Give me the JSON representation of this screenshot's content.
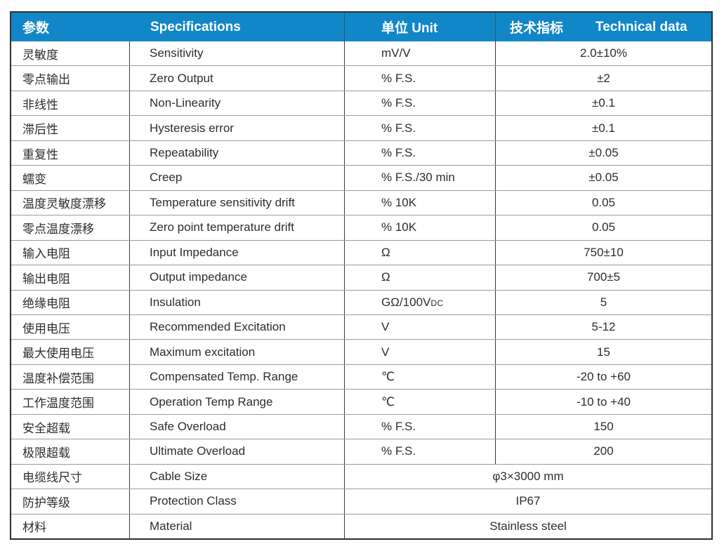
{
  "colors": {
    "header_bg": "#1287c8",
    "header_text": "#ffffff",
    "outer_border": "#2e2e2e",
    "column_divider": "#3a3a3a",
    "row_line": "#9b9b9b",
    "body_text": "#2d2d2d"
  },
  "table": {
    "header": {
      "param_cn": "参数",
      "spec_en": "Specifications",
      "unit": "单位 Unit",
      "tech_cn": "技术指标",
      "tech_en": "Technical data"
    },
    "rows": [
      {
        "cn": "灵敏度",
        "en": "Sensitivity",
        "unit": "mV/V",
        "value": "2.0±10%"
      },
      {
        "cn": "零点输出",
        "en": "Zero Output",
        "unit": "% F.S.",
        "value": "±2"
      },
      {
        "cn": "非线性",
        "en": "Non-Linearity",
        "unit": "% F.S.",
        "value": "±0.1"
      },
      {
        "cn": "滞后性",
        "en": "Hysteresis error",
        "unit": "% F.S.",
        "value": "±0.1"
      },
      {
        "cn": "重复性",
        "en": "Repeatability",
        "unit": "% F.S.",
        "value": "±0.05"
      },
      {
        "cn": "蠕变",
        "en": "Creep",
        "unit": "% F.S./30 min",
        "value": "±0.05"
      },
      {
        "cn": "温度灵敏度漂移",
        "en": "Temperature sensitivity drift",
        "unit": "% 10K",
        "value": "0.05"
      },
      {
        "cn": "零点温度漂移",
        "en": "Zero point temperature drift",
        "unit": "% 10K",
        "value": "0.05"
      },
      {
        "cn": "输入电阻",
        "en": "Input Impedance",
        "unit": "Ω",
        "value": "750±10"
      },
      {
        "cn": "输出电阻",
        "en": "Output impedance",
        "unit": "Ω",
        "value": "700±5"
      },
      {
        "cn": "绝缘电阻",
        "en": "Insulation",
        "unit": "GΩ/100V",
        "unit_sub": "DC",
        "value": "5"
      },
      {
        "cn": "使用电压",
        "en": "Recommended Excitation",
        "unit": "V",
        "value": "5-12"
      },
      {
        "cn": "最大使用电压",
        "en": "Maximum excitation",
        "unit": "V",
        "value": "15"
      },
      {
        "cn": "温度补偿范围",
        "en": "Compensated Temp. Range",
        "unit": "℃",
        "value": "-20 to +60"
      },
      {
        "cn": "工作温度范围",
        "en": "Operation Temp Range",
        "unit": "℃",
        "value": "-10 to +40"
      },
      {
        "cn": "安全超载",
        "en": "Safe Overload",
        "unit": "% F.S.",
        "value": "150"
      },
      {
        "cn": "极限超载",
        "en": "Ultimate Overload",
        "unit": "% F.S.",
        "value": "200"
      },
      {
        "cn": "电缆线尺寸",
        "en": "Cable Size",
        "merged": true,
        "value": "φ3×3000 mm"
      },
      {
        "cn": "防护等级",
        "en": "Protection Class",
        "merged": true,
        "value": "IP67"
      },
      {
        "cn": "材料",
        "en": "Material",
        "merged": true,
        "value": "Stainless steel"
      }
    ]
  }
}
